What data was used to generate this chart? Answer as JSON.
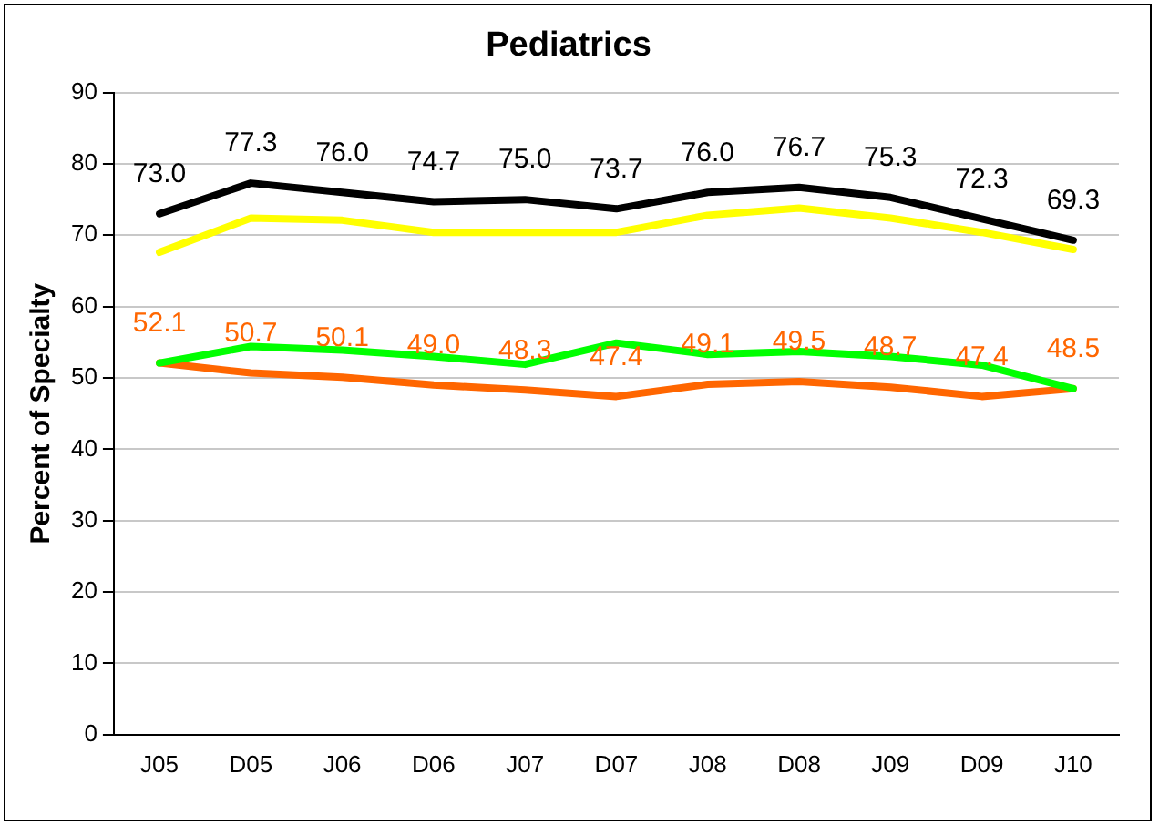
{
  "chart_data": {
    "type": "line",
    "title": "Pediatrics",
    "ylabel": "Percent of Specialty",
    "categories": [
      "J05",
      "D05",
      "J06",
      "D06",
      "J07",
      "D07",
      "J08",
      "D08",
      "J09",
      "D09",
      "J10"
    ],
    "series": [
      {
        "color": "#000000",
        "values": [
          73.0,
          77.3,
          76.0,
          74.7,
          75.0,
          73.7,
          76.0,
          76.7,
          75.3,
          72.3,
          69.3
        ],
        "value_labels": [
          "73.0",
          "77.3",
          "76.0",
          "74.7",
          "75.0",
          "73.7",
          "76.0",
          "76.7",
          "75.3",
          "72.3",
          "69.3"
        ]
      },
      {
        "color": "#ffff00",
        "values": [
          67.6,
          72.4,
          72.1,
          70.4,
          70.4,
          70.4,
          72.8,
          73.8,
          72.4,
          70.4,
          68.0
        ]
      },
      {
        "color": "#00ff00",
        "values": [
          52.1,
          54.4,
          53.9,
          53.0,
          51.9,
          54.9,
          53.3,
          53.7,
          53.0,
          51.8,
          48.5
        ]
      },
      {
        "color": "#ff6600",
        "values": [
          52.1,
          50.7,
          50.1,
          49.0,
          48.3,
          47.4,
          49.1,
          49.5,
          48.7,
          47.4,
          48.5
        ],
        "value_labels": [
          "52.1",
          "50.7",
          "50.1",
          "49.0",
          "48.3",
          "47.4",
          "49.1",
          "49.5",
          "48.7",
          "47.4",
          "48.5"
        ]
      }
    ],
    "ylim": [
      0,
      90
    ],
    "yticks": [
      0,
      10,
      20,
      30,
      40,
      50,
      60,
      70,
      80,
      90
    ],
    "grid": "y",
    "legend": false,
    "marker": "none",
    "line_style": "solid"
  }
}
